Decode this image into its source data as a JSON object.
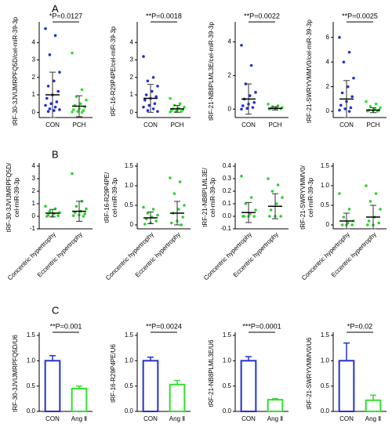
{
  "panel_labels": [
    "A",
    "B",
    "C"
  ],
  "chart_data": [
    {
      "type": "strip",
      "ylabel": "tRF-30-3JVIJMRPFQ5D/cel-miR-39-3p",
      "annotation": "*P=0.0127",
      "categories": [
        "CON",
        "PCH"
      ],
      "ylim": [
        -0.3,
        5
      ],
      "yticks": [
        0,
        1,
        2,
        3,
        4
      ],
      "groups": [
        {
          "color": "#2233cc",
          "values": [
            4.8,
            4.4,
            3.3,
            2.3,
            1.8,
            1.5,
            1.2,
            1.0,
            0.8,
            0.6,
            0.5,
            0.4,
            0.3,
            0.2,
            0.15,
            0.1,
            0.05
          ],
          "mean": 1.0,
          "sd": 1.3
        },
        {
          "color": "#33dd33",
          "values": [
            3.4,
            1.3,
            0.9,
            0.7,
            0.5,
            0.4,
            0.3,
            0.2,
            0.15,
            0.1,
            0.05,
            0.02,
            0
          ],
          "mean": 0.35,
          "sd": 0.6
        }
      ]
    },
    {
      "type": "strip",
      "ylabel": "tRF-16-R29P4PE/cel-miR-39-3p",
      "annotation": "**P=0.0018",
      "categories": [
        "CON",
        "PCH"
      ],
      "ylim": [
        -0.3,
        5
      ],
      "yticks": [
        0,
        1,
        2,
        3,
        4
      ],
      "groups": [
        {
          "color": "#2233cc",
          "values": [
            3.2,
            2.0,
            1.8,
            1.5,
            1.2,
            1.0,
            0.9,
            0.8,
            0.7,
            0.5,
            0.4,
            0.3,
            0.2,
            0.1,
            0.05
          ],
          "mean": 0.8,
          "sd": 0.8
        },
        {
          "color": "#33dd33",
          "values": [
            0.8,
            0.5,
            0.4,
            0.3,
            0.25,
            0.2,
            0.15,
            0.1,
            0.1,
            0.05,
            0.05,
            0.02
          ],
          "mean": 0.2,
          "sd": 0.2
        }
      ]
    },
    {
      "type": "strip",
      "ylabel": "tRF-21-NB8PLML3E/cel-miR-39-3p",
      "annotation": "**P=0.0022",
      "categories": [
        "CON",
        "PCH"
      ],
      "ylim": [
        -0.5,
        5
      ],
      "yticks": [
        0,
        2,
        4
      ],
      "groups": [
        {
          "color": "#2233cc",
          "values": [
            3.8,
            2.6,
            1.5,
            1.0,
            0.8,
            0.6,
            0.4,
            0.3,
            0.2,
            0.1,
            0.05,
            0
          ],
          "mean": 0.6,
          "sd": 0.9
        },
        {
          "color": "#33dd33",
          "values": [
            0.3,
            0.2,
            0.15,
            0.1,
            0.05,
            0.05,
            0.02,
            0.01,
            0
          ],
          "mean": 0.05,
          "sd": 0.1
        }
      ]
    },
    {
      "type": "strip",
      "ylabel": "tRF-21-SWRYVMMV0/cel-miR-39-3p",
      "annotation": "**P=0.0025",
      "categories": [
        "CON",
        "PCH"
      ],
      "ylim": [
        -0.5,
        7
      ],
      "yticks": [
        0,
        2,
        4,
        6
      ],
      "groups": [
        {
          "color": "#2233cc",
          "values": [
            6.0,
            4.8,
            4.0,
            2.7,
            2.0,
            1.5,
            1.2,
            0.8,
            0.5,
            0.3,
            0.2,
            0.1,
            0
          ],
          "mean": 1.0,
          "sd": 1.5
        },
        {
          "color": "#33dd33",
          "values": [
            0.8,
            0.6,
            0.4,
            0.3,
            0.2,
            0.1,
            0.1,
            0.05,
            0.02,
            0
          ],
          "mean": 0.1,
          "sd": 0.2
        }
      ]
    },
    {
      "type": "strip",
      "ylabel": [
        "tRF-30-3JVIJMRPFQ5D/",
        "cel-miR-39-3p"
      ],
      "categories": [
        "Concentric hypertrophy",
        "Eccentric hypertrophy"
      ],
      "ylim": [
        -1,
        4
      ],
      "yticks": [
        -1,
        0,
        1,
        2,
        3,
        4
      ],
      "groups": [
        {
          "color": "#33cc33",
          "values": [
            0.8,
            0.6,
            0.4,
            0.3,
            0.2,
            0.1,
            0.05,
            0,
            0
          ],
          "mean": 0.25,
          "sd": 0.3
        },
        {
          "color": "#33cc33",
          "values": [
            3.4,
            1.2,
            0.8,
            0.6,
            0.4,
            0.3,
            0.2,
            0.1,
            0.05,
            0
          ],
          "mean": 0.4,
          "sd": 0.8
        }
      ]
    },
    {
      "type": "strip",
      "ylabel": [
        "tRF-16-R29P4PE/",
        "cel-miR-39-3p"
      ],
      "categories": [
        "Concentric hypertrophy",
        "Eccentric hypertrophy"
      ],
      "ylim": [
        -0.1,
        1.5
      ],
      "yticks": [
        0,
        0.5,
        {
          "value": 1,
          "label": "1.0"
        },
        1.5
      ],
      "groups": [
        {
          "color": "#33cc33",
          "values": [
            0.45,
            0.4,
            0.3,
            0.25,
            0.2,
            0.15,
            0.1,
            0.05,
            0.02
          ],
          "mean": 0.18,
          "sd": 0.15
        },
        {
          "color": "#33cc33",
          "values": [
            1.2,
            1.1,
            0.8,
            0.5,
            0.4,
            0.3,
            0.2,
            0.1,
            0.05,
            0
          ],
          "mean": 0.3,
          "sd": 0.3
        }
      ]
    },
    {
      "type": "strip",
      "ylabel": [
        "tRF-21-NB8PLML3E/",
        "cel-miR-39-3p"
      ],
      "categories": [
        "Concentric hypertrophy",
        "Eccentric hypertrophy"
      ],
      "ylim": [
        -0.1,
        0.4
      ],
      "yticks": [
        -0.1,
        {
          "value": 0,
          "label": "0.0"
        },
        0.1,
        0.2,
        0.3,
        0.4
      ],
      "groups": [
        {
          "color": "#33cc33",
          "values": [
            0.32,
            0.15,
            0.1,
            0.05,
            0.02,
            0,
            0,
            0,
            0
          ],
          "mean": 0.03,
          "sd": 0.08
        },
        {
          "color": "#33cc33",
          "values": [
            0.3,
            0.25,
            0.2,
            0.15,
            0.1,
            0.05,
            0,
            0,
            0
          ],
          "mean": 0.08,
          "sd": 0.1
        }
      ]
    },
    {
      "type": "strip",
      "ylabel": [
        "tRF-21-SWRYVMMV0/",
        "cel-miR-39-3p"
      ],
      "categories": [
        "Concentric hypertrophy",
        "Eccentric hypertrophy"
      ],
      "ylim": [
        -0.1,
        1.5
      ],
      "yticks": [
        0,
        0.5,
        {
          "value": 1,
          "label": "1.0"
        },
        1.5
      ],
      "groups": [
        {
          "color": "#33cc33",
          "values": [
            0.8,
            0.4,
            0.2,
            0.1,
            0.05,
            0,
            0,
            0
          ],
          "mean": 0.1,
          "sd": 0.2
        },
        {
          "color": "#33cc33",
          "values": [
            1.0,
            0.8,
            0.6,
            0.4,
            0.2,
            0.1,
            0.05,
            0,
            0
          ],
          "mean": 0.2,
          "sd": 0.3
        }
      ]
    },
    {
      "type": "bar",
      "ylabel": "tRF-30-3JVIJMRPFQ5D/U6",
      "annotation": "**P=0.001",
      "categories": [
        "CON",
        "Ang Ⅱ"
      ],
      "colors": [
        "#2233cc",
        "#33dd33"
      ],
      "values": [
        1.0,
        0.45
      ],
      "errors": [
        0.1,
        0.05
      ],
      "ylim": [
        0,
        1.5
      ],
      "yticks": [
        {
          "value": 0,
          "label": "0.0"
        },
        0.5,
        {
          "value": 1,
          "label": "1.0"
        },
        1.5
      ]
    },
    {
      "type": "bar",
      "ylabel": "tRF-16-R29P4PE/U6",
      "annotation": "**P=0.0024",
      "categories": [
        "CON",
        "Ang Ⅱ"
      ],
      "colors": [
        "#2233cc",
        "#33dd33"
      ],
      "values": [
        1.0,
        0.53
      ],
      "errors": [
        0.07,
        0.08
      ],
      "ylim": [
        0,
        1.5
      ],
      "yticks": [
        {
          "value": 0,
          "label": "0.0"
        },
        0.5,
        {
          "value": 1,
          "label": "1.0"
        },
        1.5
      ]
    },
    {
      "type": "bar",
      "ylabel": "tRF-21-NB8PLML3E/U6",
      "annotation": "***P=0.0001",
      "categories": [
        "CON",
        "Ang Ⅱ"
      ],
      "colors": [
        "#2233cc",
        "#33dd33"
      ],
      "values": [
        1.0,
        0.23
      ],
      "errors": [
        0.08,
        0.02
      ],
      "ylim": [
        0,
        1.5
      ],
      "yticks": [
        {
          "value": 0,
          "label": "0.0"
        },
        0.5,
        {
          "value": 1,
          "label": "1.0"
        },
        1.5
      ]
    },
    {
      "type": "bar",
      "ylabel": "tRF-21-SWRYVMMV0/U6",
      "annotation": "*P=0.02",
      "categories": [
        "CON",
        "Ang Ⅱ"
      ],
      "colors": [
        "#2233cc",
        "#33dd33"
      ],
      "values": [
        1.0,
        0.22
      ],
      "errors": [
        0.35,
        0.1
      ],
      "ylim": [
        0,
        1.5
      ],
      "yticks": [
        {
          "value": 0,
          "label": "0.0"
        },
        0.5,
        {
          "value": 1,
          "label": "1.0"
        },
        1.5
      ]
    }
  ]
}
